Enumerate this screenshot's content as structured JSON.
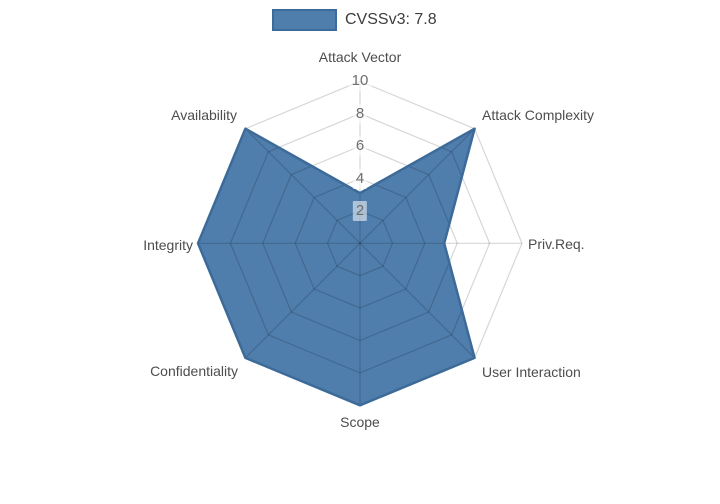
{
  "chart_data": {
    "type": "radar",
    "title": "",
    "axes": [
      "Attack Vector",
      "Attack Complexity",
      "Priv.Req.",
      "User Interaction",
      "Scope",
      "Confidentiality",
      "Integrity",
      "Availability"
    ],
    "series": [
      {
        "name": "CVSSv3: 7.8",
        "values": [
          3.1,
          10,
          5.2,
          10,
          10,
          10,
          10,
          10
        ]
      }
    ],
    "radial_ticks": [
      2,
      4,
      6,
      8,
      10
    ],
    "radial_range": [
      0,
      10
    ],
    "grid": "polygonal web, 8 spokes, shown above trace",
    "legend_position": "top-center",
    "colors": {
      "fill": "#4f7dac",
      "line": "#3d6b99",
      "grid_line": "rgba(0,0,0,0.16)",
      "axis_text": "#4d4d4d",
      "tick_text": "#6e6e6e",
      "legend_text": "#3d3d3d"
    }
  }
}
